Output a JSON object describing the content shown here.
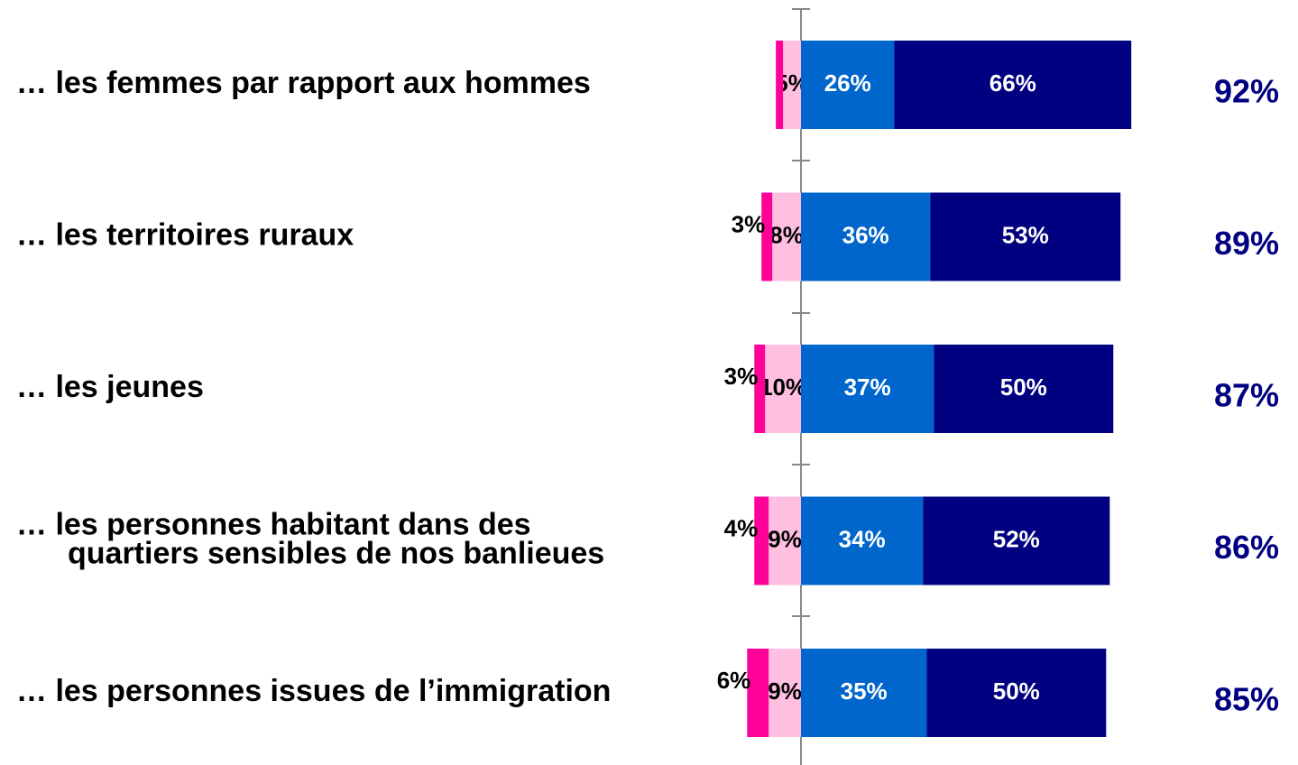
{
  "chart_data": {
    "type": "diverging_bar",
    "categories": [
      [
        "… les femmes par rapport aux hommes"
      ],
      [
        "… les territoires ruraux"
      ],
      [
        "… les jeunes"
      ],
      [
        "… les personnes habitant dans des",
        "quartiers sensibles de nos banlieues"
      ],
      [
        "… les personnes issues de l’immigration"
      ]
    ],
    "series": [
      {
        "color": "#ff0099",
        "side": "negative",
        "values": [
          2,
          3,
          3,
          4,
          6
        ],
        "value_labels": [
          null,
          "3%",
          "3%",
          "4%",
          "6%"
        ]
      },
      {
        "color": "#ffbfe0",
        "side": "negative",
        "values": [
          5,
          8,
          10,
          9,
          9
        ],
        "value_labels": [
          "5%",
          "8%",
          "10%",
          "9%",
          "9%"
        ]
      },
      {
        "color": "#0066cc",
        "side": "positive",
        "values": [
          26,
          36,
          37,
          34,
          35
        ],
        "value_labels": [
          "26%",
          "36%",
          "37%",
          "34%",
          "35%"
        ]
      },
      {
        "color": "#000080",
        "side": "positive",
        "values": [
          66,
          53,
          50,
          52,
          50
        ],
        "value_labels": [
          "66%",
          "53%",
          "50%",
          "52%",
          "50%"
        ]
      }
    ],
    "totals": {
      "color": "#000080",
      "values": [
        92,
        89,
        87,
        86,
        85
      ],
      "value_labels": [
        "92%",
        "89%",
        "87%",
        "86%",
        "85%"
      ]
    }
  }
}
